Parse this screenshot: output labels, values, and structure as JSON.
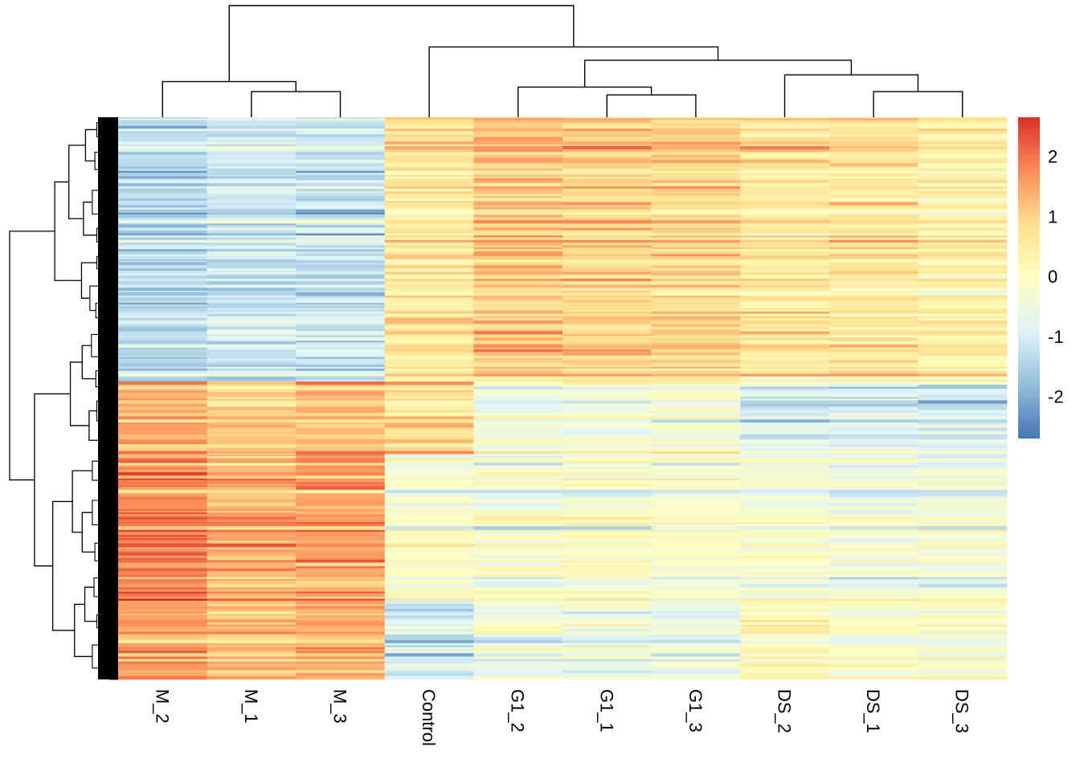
{
  "chart_data": {
    "type": "heatmap",
    "title": "",
    "xlabel": "",
    "ylabel": "",
    "columns": [
      "M_2",
      "M_1",
      "M_3",
      "Control",
      "G1_2",
      "G1_1",
      "G1_3",
      "DS_2",
      "DS_1",
      "DS_3"
    ],
    "column_dendrogram": {
      "leaf_order": [
        "M_2",
        "M_1",
        "M_3",
        "Control",
        "G1_2",
        "G1_1",
        "G1_3",
        "DS_2",
        "DS_1",
        "DS_3"
      ],
      "merges": [
        {
          "a": "G1_1",
          "b": "G1_3",
          "height": 0.2
        },
        {
          "a": "M_1",
          "b": "M_3",
          "height": 0.23
        },
        {
          "a": "DS_1",
          "b": "DS_3",
          "height": 0.23
        },
        {
          "a": "G1_2",
          "b": "G1_1+G1_3",
          "height": 0.27
        },
        {
          "a": "M_2",
          "b": "M_1+M_3",
          "height": 0.32
        },
        {
          "a": "DS_2",
          "b": "DS_1+DS_3",
          "height": 0.38
        },
        {
          "a": "G1 cluster",
          "b": "DS cluster",
          "height": 0.51
        },
        {
          "a": "Control",
          "b": "G1+DS cluster",
          "height": 0.63
        },
        {
          "a": "M cluster",
          "b": "Control+G1+DS cluster",
          "height": 1.0
        }
      ]
    },
    "row_dendrogram": "present (many rows, hierarchical clustering; two main branches)",
    "row_blocks": [
      {
        "label": "block-1",
        "row_fraction": 0.47,
        "mean_z": [
          -1.4,
          -1.1,
          -1.2,
          0.6,
          1.1,
          1.0,
          0.9,
          0.6,
          0.6,
          0.4
        ]
      },
      {
        "label": "block-2",
        "row_fraction": 0.13,
        "mean_z": [
          1.4,
          1.1,
          1.2,
          0.9,
          -0.4,
          -0.3,
          -0.3,
          -0.9,
          -0.8,
          -1.0
        ]
      },
      {
        "label": "block-3",
        "row_fraction": 0.26,
        "mean_z": [
          1.8,
          1.3,
          1.5,
          -0.3,
          -0.4,
          -0.2,
          -0.3,
          -0.4,
          -0.5,
          -0.5
        ]
      },
      {
        "label": "block-4",
        "row_fraction": 0.14,
        "mean_z": [
          1.6,
          1.1,
          1.4,
          -1.1,
          -0.5,
          -0.6,
          -0.7,
          0.1,
          -0.2,
          -0.1
        ]
      }
    ],
    "colorbar": {
      "range": [
        -2.7,
        2.65
      ],
      "ticks": [
        "2",
        "1",
        "0",
        "-1",
        "-2"
      ],
      "tick_values": [
        2,
        1,
        0,
        -1,
        -2
      ],
      "palette": [
        "#4575B4",
        "#91BFDB",
        "#E0F3F8",
        "#FFFFBF",
        "#FEE090",
        "#FC8D59",
        "#D73027"
      ],
      "placement": "right"
    },
    "grid": false,
    "legend": "right"
  }
}
